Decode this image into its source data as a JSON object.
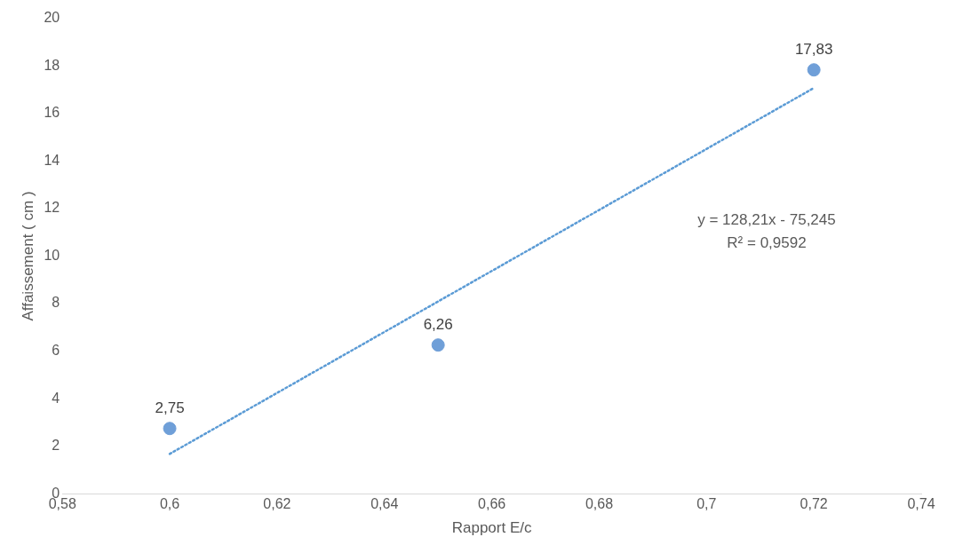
{
  "chart_data": {
    "type": "scatter",
    "xlabel": "Rapport E/c",
    "ylabel": "Affaissement ( cm )",
    "series": [
      {
        "type": "scatter",
        "color": "#6f9fd8",
        "x": [
          0.6,
          0.65,
          0.72
        ],
        "values": [
          2.75,
          6.26,
          17.83
        ],
        "value_labels": [
          "2,75",
          "6,26",
          "17,83"
        ],
        "marker": "circle"
      },
      {
        "type": "line",
        "color": "#5b9bd5",
        "x": [
          0.6,
          0.72
        ],
        "values": [
          1.68,
          17.07
        ],
        "line_style": "dotted",
        "marker": "none"
      }
    ],
    "annotations": [
      "y = 128,21x - 75,245",
      "R² = 0,9592"
    ],
    "xlim": [
      0.58,
      0.74
    ],
    "xticks": [
      {
        "value": 0.58,
        "label": "0,58"
      },
      {
        "value": 0.6,
        "label": "0,6"
      },
      {
        "value": 0.62,
        "label": "0,62"
      },
      {
        "value": 0.64,
        "label": "0,64"
      },
      {
        "value": 0.66,
        "label": "0,66"
      },
      {
        "value": 0.68,
        "label": "0,68"
      },
      {
        "value": 0.7,
        "label": "0,7"
      },
      {
        "value": 0.72,
        "label": "0,72"
      },
      {
        "value": 0.74,
        "label": "0,74"
      }
    ],
    "ylim": [
      0,
      20
    ],
    "yticks": [
      0,
      2,
      4,
      6,
      8,
      10,
      12,
      14,
      16,
      18,
      20
    ],
    "grid": false,
    "legend": false
  }
}
